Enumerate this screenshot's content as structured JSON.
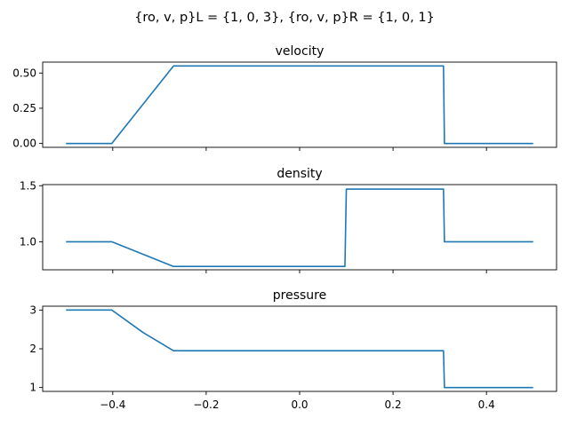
{
  "suptitle": "{ro, v, p}L = {1, 0, 3}, {ro, v, p}R = {1, 0, 1}",
  "colors": {
    "line": "#1f77b4"
  },
  "chart_data": [
    {
      "type": "line",
      "title": "velocity",
      "xlim": [
        -0.55,
        0.55
      ],
      "ylim": [
        -0.0275,
        0.5775
      ],
      "xticks": [
        -0.4,
        -0.2,
        0.0,
        0.2,
        0.4
      ],
      "yticks": [
        0.0,
        0.25,
        0.5
      ],
      "ytick_labels": [
        "0.00",
        "0.25",
        "0.50"
      ],
      "show_xtick_labels": false,
      "x": [
        -0.5,
        -0.402,
        -0.27,
        0.308,
        0.31,
        0.5
      ],
      "y": [
        0.0,
        0.0,
        0.55,
        0.55,
        0.0,
        0.0
      ]
    },
    {
      "type": "line",
      "title": "density",
      "xlim": [
        -0.55,
        0.55
      ],
      "ylim": [
        0.75,
        1.51
      ],
      "xticks": [
        -0.4,
        -0.2,
        0.0,
        0.2,
        0.4
      ],
      "yticks": [
        1.0,
        1.5
      ],
      "ytick_labels": [
        "1.0",
        "1.5"
      ],
      "show_xtick_labels": false,
      "x": [
        -0.5,
        -0.402,
        -0.27,
        0.097,
        0.1,
        0.308,
        0.31,
        0.5
      ],
      "y": [
        1.0,
        1.0,
        0.78,
        0.78,
        1.47,
        1.47,
        1.0,
        1.0
      ]
    },
    {
      "type": "line",
      "title": "pressure",
      "xlim": [
        -0.55,
        0.55
      ],
      "ylim": [
        0.9,
        3.1
      ],
      "xticks": [
        -0.4,
        -0.2,
        0.0,
        0.2,
        0.4
      ],
      "xtick_labels": [
        "−0.4",
        "−0.2",
        "0.0",
        "0.2",
        "0.4"
      ],
      "yticks": [
        1,
        2,
        3
      ],
      "ytick_labels": [
        "1",
        "2",
        "3"
      ],
      "show_xtick_labels": true,
      "x": [
        -0.5,
        -0.402,
        -0.335,
        -0.27,
        0.308,
        0.31,
        0.5
      ],
      "y": [
        3.0,
        3.0,
        2.42,
        1.95,
        1.95,
        1.0,
        1.0
      ]
    }
  ]
}
